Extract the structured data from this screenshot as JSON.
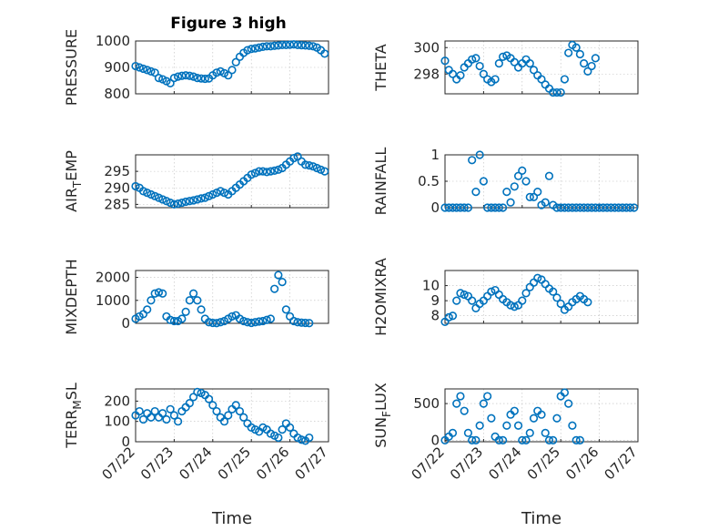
{
  "figure_title": "Figure 3 high",
  "accent_color": "#0072BD",
  "chart_data": [
    {
      "type": "scatter",
      "ylabel": "PRESSURE",
      "ylim": [
        800,
        1000
      ],
      "yticks": [
        "800",
        "900",
        "1000"
      ],
      "yticks_values": [
        800,
        900,
        1000
      ],
      "xticks": [],
      "xlabel": "",
      "x": [
        0,
        0.1,
        0.2,
        0.3,
        0.4,
        0.5,
        0.6,
        0.7,
        0.8,
        0.9,
        1,
        1.1,
        1.2,
        1.3,
        1.4,
        1.5,
        1.6,
        1.7,
        1.8,
        1.9,
        2,
        2.1,
        2.2,
        2.3,
        2.4,
        2.5,
        2.6,
        2.7,
        2.8,
        2.9,
        3,
        3.1,
        3.2,
        3.3,
        3.4,
        3.5,
        3.6,
        3.7,
        3.8,
        3.9,
        4,
        4.1,
        4.2,
        4.3,
        4.4,
        4.5,
        4.6,
        4.7,
        4.8,
        4.9
      ],
      "y": [
        905,
        900,
        895,
        890,
        885,
        880,
        860,
        855,
        848,
        840,
        860,
        865,
        868,
        870,
        868,
        865,
        860,
        858,
        857,
        858,
        870,
        880,
        885,
        878,
        870,
        890,
        920,
        940,
        955,
        965,
        970,
        972,
        975,
        978,
        980,
        980,
        982,
        983,
        985,
        985,
        986,
        987,
        985,
        984,
        983,
        982,
        980,
        975,
        965,
        952
      ]
    },
    {
      "type": "scatter",
      "ylabel": "THETA",
      "ylim": [
        296.5,
        300.5
      ],
      "yticks": [
        "298",
        "300"
      ],
      "yticks_values": [
        298,
        300
      ],
      "xticks": [],
      "xlabel": "",
      "x": [
        0,
        0.1,
        0.2,
        0.3,
        0.4,
        0.5,
        0.6,
        0.7,
        0.8,
        0.9,
        1,
        1.1,
        1.2,
        1.3,
        1.4,
        1.5,
        1.6,
        1.7,
        1.8,
        1.9,
        2,
        2.1,
        2.2,
        2.3,
        2.4,
        2.5,
        2.6,
        2.7,
        2.8,
        2.9,
        3,
        3.1,
        3.2,
        3.3,
        3.4,
        3.5,
        3.6,
        3.7,
        3.8,
        3.9,
        4,
        4.1,
        4.2,
        4.3,
        4.4,
        4.5,
        4.6,
        4.7,
        4.8,
        4.9
      ],
      "y": [
        299,
        298.3,
        298,
        297.6,
        297.9,
        298.5,
        298.8,
        299.1,
        299.2,
        298.6,
        298,
        297.6,
        297.4,
        297.6,
        298.8,
        299.3,
        299.4,
        299.2,
        298.9,
        298.5,
        298.8,
        299.1,
        298.8,
        298.3,
        297.9,
        297.6,
        297.2,
        296.9,
        296.6,
        296.6,
        296.6,
        297.6,
        299.6,
        300.2,
        300,
        299.5,
        298.8,
        298.2,
        298.6,
        299.2,
        null,
        null,
        null,
        null,
        null,
        null,
        null,
        null,
        null,
        null
      ]
    },
    {
      "type": "scatter",
      "ylabel": "AIR_TEMP",
      "ylim": [
        284,
        300
      ],
      "yticks": [
        "285",
        "290",
        "295"
      ],
      "yticks_values": [
        285,
        290,
        295
      ],
      "xticks": [],
      "xlabel": "",
      "x": [
        0,
        0.1,
        0.2,
        0.3,
        0.4,
        0.5,
        0.6,
        0.7,
        0.8,
        0.9,
        1,
        1.1,
        1.2,
        1.3,
        1.4,
        1.5,
        1.6,
        1.7,
        1.8,
        1.9,
        2,
        2.1,
        2.2,
        2.3,
        2.4,
        2.5,
        2.6,
        2.7,
        2.8,
        2.9,
        3,
        3.1,
        3.2,
        3.3,
        3.4,
        3.5,
        3.6,
        3.7,
        3.8,
        3.9,
        4,
        4.1,
        4.2,
        4.3,
        4.4,
        4.5,
        4.6,
        4.7,
        4.8,
        4.9
      ],
      "y": [
        290.5,
        290,
        289,
        288.5,
        288,
        287.5,
        287,
        286.5,
        286,
        285.5,
        285,
        285.2,
        285.5,
        285.8,
        286,
        286.2,
        286.5,
        286.8,
        287,
        287.5,
        288,
        288.5,
        289,
        288.5,
        288,
        289,
        290,
        291,
        292,
        293,
        294,
        294.5,
        295,
        295,
        294.8,
        295,
        295.2,
        295.5,
        296,
        297,
        298,
        299,
        299.5,
        298,
        297,
        296.8,
        296.5,
        296,
        295.5,
        295
      ]
    },
    {
      "type": "scatter",
      "ylabel": "RAINFALL",
      "ylim": [
        0,
        1
      ],
      "yticks": [
        "0",
        "0.5",
        "1"
      ],
      "yticks_values": [
        0,
        0.5,
        1
      ],
      "xticks": [],
      "xlabel": "",
      "x": [
        0,
        0.1,
        0.2,
        0.3,
        0.4,
        0.5,
        0.6,
        0.7,
        0.8,
        0.9,
        1,
        1.1,
        1.2,
        1.3,
        1.4,
        1.5,
        1.6,
        1.7,
        1.8,
        1.9,
        2,
        2.1,
        2.2,
        2.3,
        2.4,
        2.5,
        2.6,
        2.7,
        2.8,
        2.9,
        3,
        3.1,
        3.2,
        3.3,
        3.4,
        3.5,
        3.6,
        3.7,
        3.8,
        3.9,
        4,
        4.1,
        4.2,
        4.3,
        4.4,
        4.5,
        4.6,
        4.7,
        4.8,
        4.9
      ],
      "y": [
        0,
        0,
        0,
        0,
        0,
        0,
        0,
        0.9,
        0.3,
        1,
        0.5,
        0,
        0,
        0,
        0,
        0,
        0.3,
        0.1,
        0.4,
        0.6,
        0.7,
        0.5,
        0.2,
        0.2,
        0.3,
        0.05,
        0.1,
        0.6,
        0.05,
        0,
        0,
        0,
        0,
        0,
        0,
        0,
        0,
        0,
        0,
        0,
        0,
        0,
        0,
        0,
        0,
        0,
        0,
        0,
        0,
        0
      ]
    },
    {
      "type": "scatter",
      "ylabel": "MIXDEPTH",
      "ylim": [
        0,
        2300
      ],
      "yticks": [
        "0",
        "1000",
        "2000"
      ],
      "yticks_values": [
        0,
        1000,
        2000
      ],
      "xticks": [],
      "xlabel": "",
      "x": [
        0,
        0.1,
        0.2,
        0.3,
        0.4,
        0.5,
        0.6,
        0.7,
        0.8,
        0.9,
        1,
        1.1,
        1.2,
        1.3,
        1.4,
        1.5,
        1.6,
        1.7,
        1.8,
        1.9,
        2,
        2.1,
        2.2,
        2.3,
        2.4,
        2.5,
        2.6,
        2.7,
        2.8,
        2.9,
        3,
        3.1,
        3.2,
        3.3,
        3.4,
        3.5,
        3.6,
        3.7,
        3.8,
        3.9,
        4,
        4.1,
        4.2,
        4.3,
        4.4,
        4.5,
        4.6,
        4.7,
        4.8,
        4.9
      ],
      "y": [
        200,
        300,
        400,
        600,
        1000,
        1300,
        1350,
        1300,
        300,
        150,
        100,
        100,
        200,
        500,
        1000,
        1300,
        1000,
        600,
        200,
        50,
        20,
        10,
        50,
        100,
        200,
        300,
        350,
        200,
        100,
        50,
        20,
        50,
        80,
        100,
        150,
        200,
        1500,
        2100,
        1800,
        600,
        300,
        100,
        50,
        30,
        20,
        10,
        null,
        null,
        null,
        null
      ]
    },
    {
      "type": "scatter",
      "ylabel": "H2OMIXRA",
      "ylim": [
        7.5,
        11
      ],
      "yticks": [
        "8",
        "9",
        "10"
      ],
      "yticks_values": [
        8,
        9,
        10
      ],
      "xticks": [],
      "xlabel": "",
      "x": [
        0,
        0.1,
        0.2,
        0.3,
        0.4,
        0.5,
        0.6,
        0.7,
        0.8,
        0.9,
        1,
        1.1,
        1.2,
        1.3,
        1.4,
        1.5,
        1.6,
        1.7,
        1.8,
        1.9,
        2,
        2.1,
        2.2,
        2.3,
        2.4,
        2.5,
        2.6,
        2.7,
        2.8,
        2.9,
        3,
        3.1,
        3.2,
        3.3,
        3.4,
        3.5,
        3.6,
        3.7,
        3.8,
        3.9,
        4,
        4.1,
        4.2,
        4.3,
        4.4,
        4.5,
        4.6,
        4.7,
        4.8,
        4.9
      ],
      "y": [
        7.6,
        7.9,
        8,
        9,
        9.5,
        9.4,
        9.3,
        9,
        8.5,
        8.8,
        9,
        9.3,
        9.6,
        9.7,
        9.4,
        9.1,
        8.9,
        8.7,
        8.6,
        8.7,
        9,
        9.5,
        9.9,
        10.2,
        10.5,
        10.4,
        10.1,
        9.8,
        9.6,
        9.2,
        8.8,
        8.4,
        8.6,
        8.9,
        9.1,
        9.3,
        9.1,
        8.9,
        null,
        null,
        null,
        null,
        null,
        null,
        null,
        null,
        null,
        null,
        null,
        null
      ]
    },
    {
      "type": "scatter",
      "ylabel": "TERR_MSL",
      "ylim": [
        0,
        260
      ],
      "yticks": [
        "0",
        "100",
        "200"
      ],
      "yticks_values": [
        0,
        100,
        200
      ],
      "xticks": [
        "07/22",
        "07/23",
        "07/24",
        "07/25",
        "07/26",
        "07/27"
      ],
      "xlabel": "Time",
      "x": [
        0,
        0.1,
        0.2,
        0.3,
        0.4,
        0.5,
        0.6,
        0.7,
        0.8,
        0.9,
        1,
        1.1,
        1.2,
        1.3,
        1.4,
        1.5,
        1.6,
        1.7,
        1.8,
        1.9,
        2,
        2.1,
        2.2,
        2.3,
        2.4,
        2.5,
        2.6,
        2.7,
        2.8,
        2.9,
        3,
        3.1,
        3.2,
        3.3,
        3.4,
        3.5,
        3.6,
        3.7,
        3.8,
        3.9,
        4,
        4.1,
        4.2,
        4.3,
        4.4,
        4.5,
        4.6,
        4.7,
        4.8,
        4.9
      ],
      "y": [
        130,
        150,
        110,
        140,
        120,
        150,
        120,
        140,
        110,
        160,
        130,
        100,
        150,
        170,
        190,
        220,
        245,
        240,
        230,
        210,
        180,
        150,
        120,
        100,
        130,
        160,
        180,
        150,
        120,
        90,
        70,
        60,
        50,
        70,
        60,
        40,
        30,
        20,
        60,
        90,
        70,
        40,
        20,
        10,
        5,
        20,
        null,
        null,
        null,
        null
      ]
    },
    {
      "type": "scatter",
      "ylabel": "SUN_FLUX",
      "ylim": [
        -20,
        700
      ],
      "yticks": [
        "0",
        "500"
      ],
      "yticks_values": [
        0,
        500
      ],
      "xticks": [
        "07/22",
        "07/23",
        "07/24",
        "07/25",
        "07/26",
        "07/27"
      ],
      "xlabel": "Time",
      "x": [
        0,
        0.1,
        0.2,
        0.3,
        0.4,
        0.5,
        0.6,
        0.7,
        0.8,
        0.9,
        1,
        1.1,
        1.2,
        1.3,
        1.4,
        1.5,
        1.6,
        1.7,
        1.8,
        1.9,
        2,
        2.1,
        2.2,
        2.3,
        2.4,
        2.5,
        2.6,
        2.7,
        2.8,
        2.9,
        3,
        3.1,
        3.2,
        3.3,
        3.4,
        3.5,
        3.6,
        3.7,
        3.8,
        3.9,
        4,
        4.1,
        4.2,
        4.3,
        4.4,
        4.5,
        4.6,
        4.7,
        4.8,
        4.9
      ],
      "y": [
        0,
        50,
        100,
        500,
        600,
        400,
        100,
        0,
        0,
        200,
        500,
        600,
        300,
        50,
        0,
        0,
        200,
        350,
        400,
        200,
        0,
        0,
        100,
        300,
        400,
        350,
        100,
        0,
        0,
        300,
        600,
        650,
        500,
        200,
        0,
        0,
        null,
        null,
        null,
        null,
        null,
        null,
        null,
        null,
        null,
        null,
        null,
        null,
        null,
        null
      ]
    }
  ]
}
